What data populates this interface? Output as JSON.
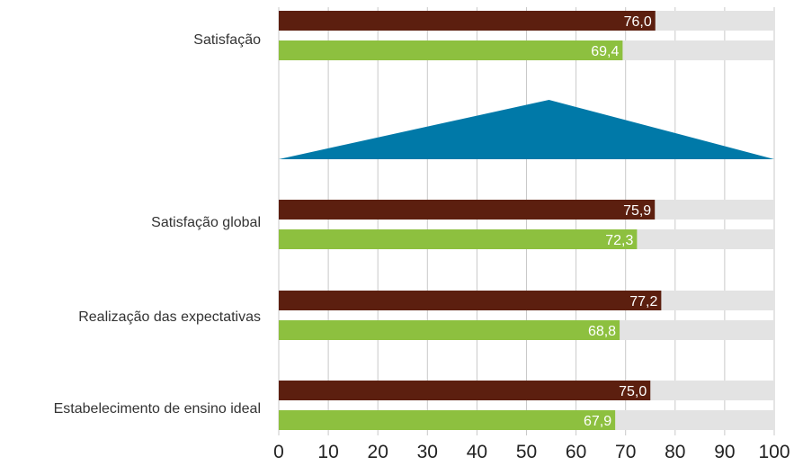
{
  "chart_data": {
    "type": "bar",
    "orientation": "horizontal",
    "xlim": [
      0,
      100
    ],
    "x_ticks": [
      "0",
      "10",
      "20",
      "30",
      "40",
      "50",
      "60",
      "70",
      "80",
      "90",
      "100"
    ],
    "categories": [
      "Satisfação",
      "Satisfação global",
      "Realização das expectativas",
      "Estabelecimento de ensino ideal"
    ],
    "series": [
      {
        "color": "#5c1f0f",
        "values": [
          76.0,
          75.9,
          77.2,
          75.0
        ],
        "labels": [
          "76,0",
          "75,9",
          "77,2",
          "75,0"
        ]
      },
      {
        "color": "#8dc03f",
        "values": [
          69.4,
          72.3,
          68.8,
          67.9
        ],
        "labels": [
          "69,4",
          "72,3",
          "68,8",
          "67,9"
        ]
      }
    ],
    "background_bar_color": "#e3e3e3",
    "grid": true,
    "indicator": {
      "shape": "triangle",
      "peak_x": 50,
      "color": "#0079a8"
    }
  }
}
